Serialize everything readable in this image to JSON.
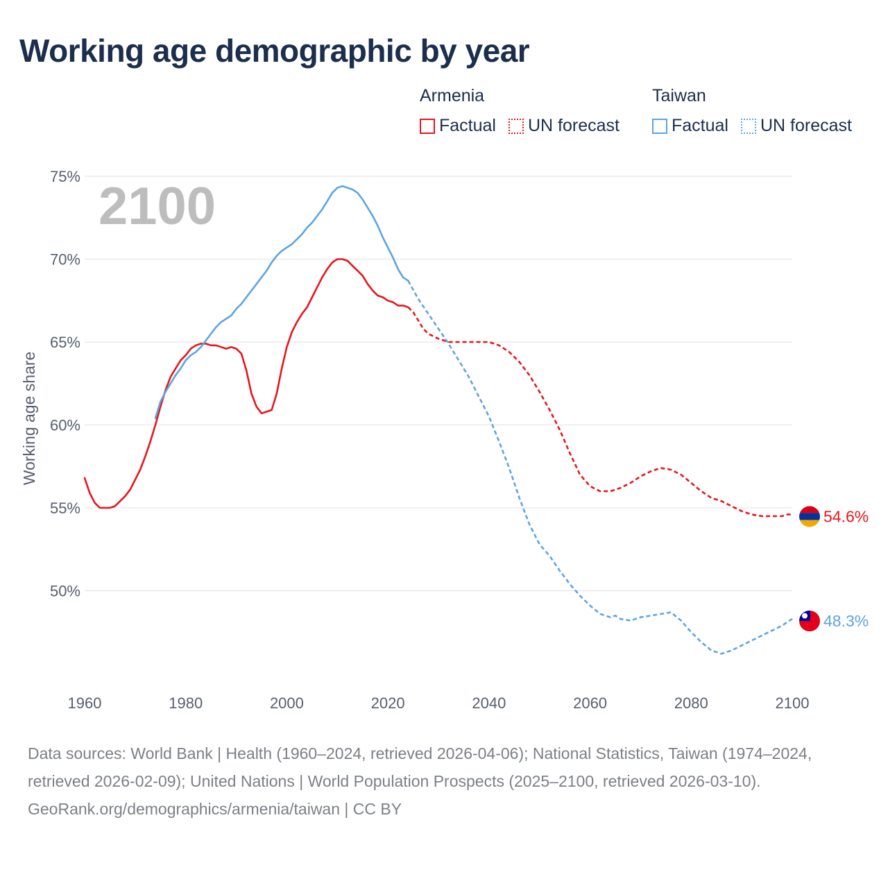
{
  "title": "Working age demographic by year",
  "legend": {
    "groups": [
      {
        "name": "Armenia",
        "color": "#e8141b",
        "factual": "Factual",
        "forecast": "UN forecast"
      },
      {
        "name": "Taiwan",
        "color": "#5ba4e3",
        "factual": "Factual",
        "forecast": "UN forecast"
      }
    ]
  },
  "footer": {
    "sources": "Data sources: World Bank | Health (1960–2024, retrieved 2026-04-06); National Statistics, Taiwan (1974–2024, retrieved 2026-02-09); United Nations | World Population Prospects (2025–2100, retrieved 2026-03-10).",
    "credit": "GeoRank.org/demographics/armenia/taiwan | CC BY"
  },
  "chart_data": {
    "type": "line",
    "title": "Working age demographic by year",
    "ylabel": "Working age share",
    "xlabel": "",
    "year_label": "2100",
    "xlim": [
      1960,
      2100
    ],
    "ylim": [
      45,
      75
    ],
    "x_ticks": [
      1960,
      1980,
      2000,
      2020,
      2040,
      2060,
      2080,
      2100
    ],
    "y_ticks": [
      50,
      55,
      60,
      65,
      70,
      75
    ],
    "y_tick_labels": [
      "50%",
      "55%",
      "60%",
      "65%",
      "70%",
      "75%"
    ],
    "grid": true,
    "series": [
      {
        "name": "Armenia",
        "color": "#e8141b",
        "end_label": "54.6%",
        "flag": "armenia",
        "factual": {
          "x": [
            1960,
            1961,
            1962,
            1963,
            1964,
            1965,
            1966,
            1967,
            1968,
            1969,
            1970,
            1971,
            1972,
            1973,
            1974,
            1975,
            1976,
            1977,
            1978,
            1979,
            1980,
            1981,
            1982,
            1983,
            1984,
            1985,
            1986,
            1987,
            1988,
            1989,
            1990,
            1991,
            1992,
            1993,
            1994,
            1995,
            1996,
            1997,
            1998,
            1999,
            2000,
            2001,
            2002,
            2003,
            2004,
            2005,
            2006,
            2007,
            2008,
            2009,
            2010,
            2011,
            2012,
            2013,
            2014,
            2015,
            2016,
            2017,
            2018,
            2019,
            2020,
            2021,
            2022,
            2023,
            2024
          ],
          "y": [
            56.8,
            55.9,
            55.3,
            55.0,
            55.0,
            55.0,
            55.1,
            55.4,
            55.7,
            56.1,
            56.7,
            57.3,
            58.1,
            59.0,
            60.0,
            61.1,
            62.1,
            62.9,
            63.4,
            63.9,
            64.2,
            64.6,
            64.8,
            64.9,
            64.9,
            64.8,
            64.8,
            64.7,
            64.6,
            64.7,
            64.6,
            64.3,
            63.3,
            61.9,
            61.1,
            60.7,
            60.8,
            60.9,
            61.9,
            63.4,
            64.7,
            65.6,
            66.2,
            66.7,
            67.1,
            67.7,
            68.3,
            68.9,
            69.4,
            69.8,
            70.0,
            70.0,
            69.9,
            69.6,
            69.3,
            69.0,
            68.5,
            68.1,
            67.8,
            67.7,
            67.5,
            67.4,
            67.2,
            67.2,
            67.1
          ],
          "style": "solid"
        },
        "forecast": {
          "x": [
            2024,
            2025,
            2026,
            2027,
            2028,
            2030,
            2032,
            2034,
            2036,
            2038,
            2040,
            2042,
            2044,
            2046,
            2048,
            2050,
            2052,
            2054,
            2056,
            2058,
            2060,
            2062,
            2064,
            2066,
            2068,
            2070,
            2072,
            2073,
            2074,
            2076,
            2078,
            2080,
            2082,
            2084,
            2086,
            2088,
            2090,
            2092,
            2094,
            2096,
            2098,
            2099,
            2100
          ],
          "y": [
            67.1,
            66.8,
            66.3,
            65.8,
            65.5,
            65.2,
            65.0,
            65.0,
            65.0,
            65.0,
            65.0,
            64.8,
            64.4,
            63.8,
            63.0,
            62.0,
            60.9,
            59.7,
            58.3,
            57.0,
            56.3,
            56.0,
            56.0,
            56.2,
            56.5,
            56.9,
            57.2,
            57.3,
            57.4,
            57.3,
            57.0,
            56.5,
            56.0,
            55.6,
            55.4,
            55.1,
            54.8,
            54.6,
            54.5,
            54.5,
            54.5,
            54.6,
            54.6
          ],
          "style": "dashed"
        }
      },
      {
        "name": "Taiwan",
        "color": "#5ba4e3",
        "end_label": "48.3%",
        "flag": "taiwan",
        "factual": {
          "x": [
            1974,
            1975,
            1976,
            1977,
            1978,
            1979,
            1980,
            1981,
            1982,
            1983,
            1984,
            1985,
            1986,
            1987,
            1988,
            1989,
            1990,
            1991,
            1992,
            1993,
            1994,
            1995,
            1996,
            1997,
            1998,
            1999,
            2000,
            2001,
            2002,
            2003,
            2004,
            2005,
            2006,
            2007,
            2008,
            2009,
            2010,
            2011,
            2012,
            2013,
            2014,
            2015,
            2016,
            2017,
            2018,
            2019,
            2020,
            2021,
            2022,
            2023,
            2024
          ],
          "y": [
            60.4,
            61.4,
            62.0,
            62.5,
            63.0,
            63.4,
            63.9,
            64.2,
            64.4,
            64.7,
            65.1,
            65.5,
            65.9,
            66.2,
            66.4,
            66.6,
            67.0,
            67.3,
            67.7,
            68.1,
            68.5,
            68.9,
            69.3,
            69.8,
            70.2,
            70.5,
            70.7,
            70.9,
            71.2,
            71.5,
            71.9,
            72.2,
            72.6,
            73.0,
            73.5,
            74.0,
            74.3,
            74.4,
            74.3,
            74.2,
            74.0,
            73.6,
            73.1,
            72.6,
            72.0,
            71.3,
            70.7,
            70.1,
            69.4,
            68.9,
            68.7
          ],
          "style": "solid"
        },
        "forecast": {
          "x": [
            2024,
            2026,
            2028,
            2030,
            2032,
            2034,
            2036,
            2038,
            2040,
            2042,
            2044,
            2046,
            2048,
            2050,
            2052,
            2054,
            2056,
            2058,
            2060,
            2062,
            2064,
            2065,
            2066,
            2068,
            2070,
            2072,
            2074,
            2076,
            2078,
            2080,
            2082,
            2084,
            2086,
            2088,
            2090,
            2092,
            2094,
            2096,
            2098,
            2099,
            2100
          ],
          "y": [
            68.7,
            67.6,
            66.7,
            65.8,
            64.9,
            63.9,
            62.9,
            61.7,
            60.5,
            59.0,
            57.4,
            55.6,
            54.0,
            52.8,
            52.1,
            51.2,
            50.4,
            49.7,
            49.1,
            48.6,
            48.4,
            48.5,
            48.3,
            48.2,
            48.4,
            48.5,
            48.6,
            48.7,
            48.2,
            47.5,
            46.9,
            46.4,
            46.2,
            46.4,
            46.7,
            47.0,
            47.3,
            47.6,
            47.9,
            48.1,
            48.3
          ],
          "style": "dashed"
        }
      }
    ]
  }
}
